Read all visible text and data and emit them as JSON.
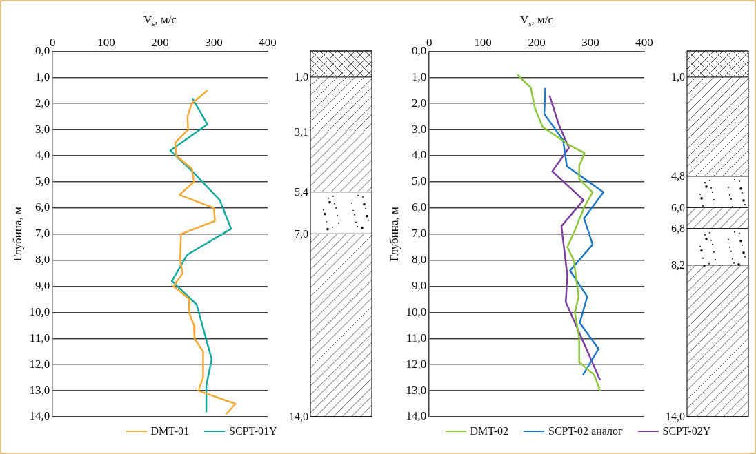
{
  "chart_data": [
    {
      "type": "line",
      "xlabel": "V$_{s}$, м/с",
      "ylabel": "Глубина, м",
      "xlim": [
        0,
        400
      ],
      "xticks": [
        0,
        100,
        200,
        300,
        400
      ],
      "ylim": [
        14,
        0
      ],
      "yticks": [
        {
          "value": 0,
          "label": "0,0"
        },
        {
          "value": 1,
          "label": "1,0"
        },
        {
          "value": 2,
          "label": "2,0"
        },
        {
          "value": 3,
          "label": "3,0"
        },
        {
          "value": 4,
          "label": "4,0"
        },
        {
          "value": 5,
          "label": "5,0"
        },
        {
          "value": 6,
          "label": "6,0"
        },
        {
          "value": 7,
          "label": "7,0"
        },
        {
          "value": 8,
          "label": "8,0"
        },
        {
          "value": 9,
          "label": "9,0"
        },
        {
          "value": 10,
          "label": "10,0"
        },
        {
          "value": 11,
          "label": "11,0"
        },
        {
          "value": 12,
          "label": "12,0"
        },
        {
          "value": 13,
          "label": "13,0"
        },
        {
          "value": 14,
          "label": "14,0"
        }
      ],
      "grid": "y",
      "legend": "bottom",
      "annotations": [
        "1,0",
        "3,1",
        "5,4",
        "7,0",
        "14,0"
      ],
      "series": [
        {
          "name": "DMT-01",
          "color": "#f7a937",
          "x": [
            288,
            259,
            251,
            252,
            228,
            230,
            259,
            263,
            236,
            300,
            302,
            239,
            237,
            242,
            225,
            255,
            254,
            263,
            264,
            280,
            280,
            271,
            340,
            323
          ],
          "values": [
            1.5,
            2.0,
            2.5,
            3.0,
            3.5,
            4.0,
            4.5,
            5.0,
            5.5,
            6.0,
            6.5,
            7.0,
            8.0,
            8.5,
            9.0,
            9.5,
            10.0,
            10.5,
            11.0,
            11.5,
            12.5,
            13.0,
            13.5,
            13.9
          ]
        },
        {
          "name": "SCPT-01Y",
          "color": "#14a89e",
          "x": [
            260,
            288,
            219,
            260,
            311,
            332,
            250,
            222,
            268,
            296,
            286,
            286
          ],
          "values": [
            1.8,
            2.8,
            3.8,
            4.6,
            5.7,
            6.8,
            7.8,
            8.8,
            9.7,
            11.8,
            12.8,
            13.8
          ]
        }
      ]
    },
    {
      "type": "line",
      "xlabel": "V$_{s}$, м/с",
      "ylabel": "Глубина, м",
      "xlim": [
        0,
        400
      ],
      "xticks": [
        0,
        100,
        200,
        300,
        400
      ],
      "ylim": [
        14,
        0
      ],
      "yticks": [
        {
          "value": 0,
          "label": "0,0"
        },
        {
          "value": 1,
          "label": "1,0"
        },
        {
          "value": 2,
          "label": "2,0"
        },
        {
          "value": 3,
          "label": "3,0"
        },
        {
          "value": 4,
          "label": "4,0"
        },
        {
          "value": 5,
          "label": "5,0"
        },
        {
          "value": 6,
          "label": "6,0"
        },
        {
          "value": 7,
          "label": "7,0"
        },
        {
          "value": 8,
          "label": "8,0"
        },
        {
          "value": 9,
          "label": "9,0"
        },
        {
          "value": 10,
          "label": "10,0"
        },
        {
          "value": 11,
          "label": "11,0"
        },
        {
          "value": 12,
          "label": "12,0"
        },
        {
          "value": 13,
          "label": "13,0"
        },
        {
          "value": 14,
          "label": "14,0"
        }
      ],
      "grid": "y",
      "legend": "bottom",
      "annotations": [
        "1,0",
        "4,8",
        "6,0",
        "6,8",
        "8,2",
        "14,0"
      ],
      "series": [
        {
          "name": "DMT-02",
          "color": "#8dc63f",
          "x": [
            164,
            189,
            197,
            211,
            261,
            289,
            279,
            279,
            304,
            290,
            270,
            257,
            269,
            278,
            271,
            279,
            279,
            307,
            318
          ],
          "values": [
            0.9,
            1.4,
            2.2,
            2.9,
            3.6,
            3.9,
            4.4,
            4.9,
            5.4,
            5.9,
            6.9,
            7.5,
            8.0,
            9.4,
            10.0,
            11.0,
            11.9,
            12.4,
            13.0
          ]
        },
        {
          "name": "SCPT-02 аналог",
          "color": "#1f78c1",
          "x": [
            216,
            214,
            249,
            256,
            324,
            288,
            304,
            262,
            294,
            280,
            315,
            286
          ],
          "values": [
            1.4,
            2.4,
            3.4,
            4.4,
            5.4,
            6.4,
            7.4,
            8.4,
            9.4,
            10.4,
            11.4,
            12.4
          ]
        },
        {
          "name": "SCPT-02Y",
          "color": "#7b3f9e",
          "x": [
            224,
            241,
            260,
            229,
            287,
            246,
            257,
            254,
            318
          ],
          "values": [
            1.7,
            2.8,
            3.7,
            4.6,
            5.7,
            6.7,
            8.6,
            9.6,
            12.6
          ]
        }
      ]
    }
  ]
}
